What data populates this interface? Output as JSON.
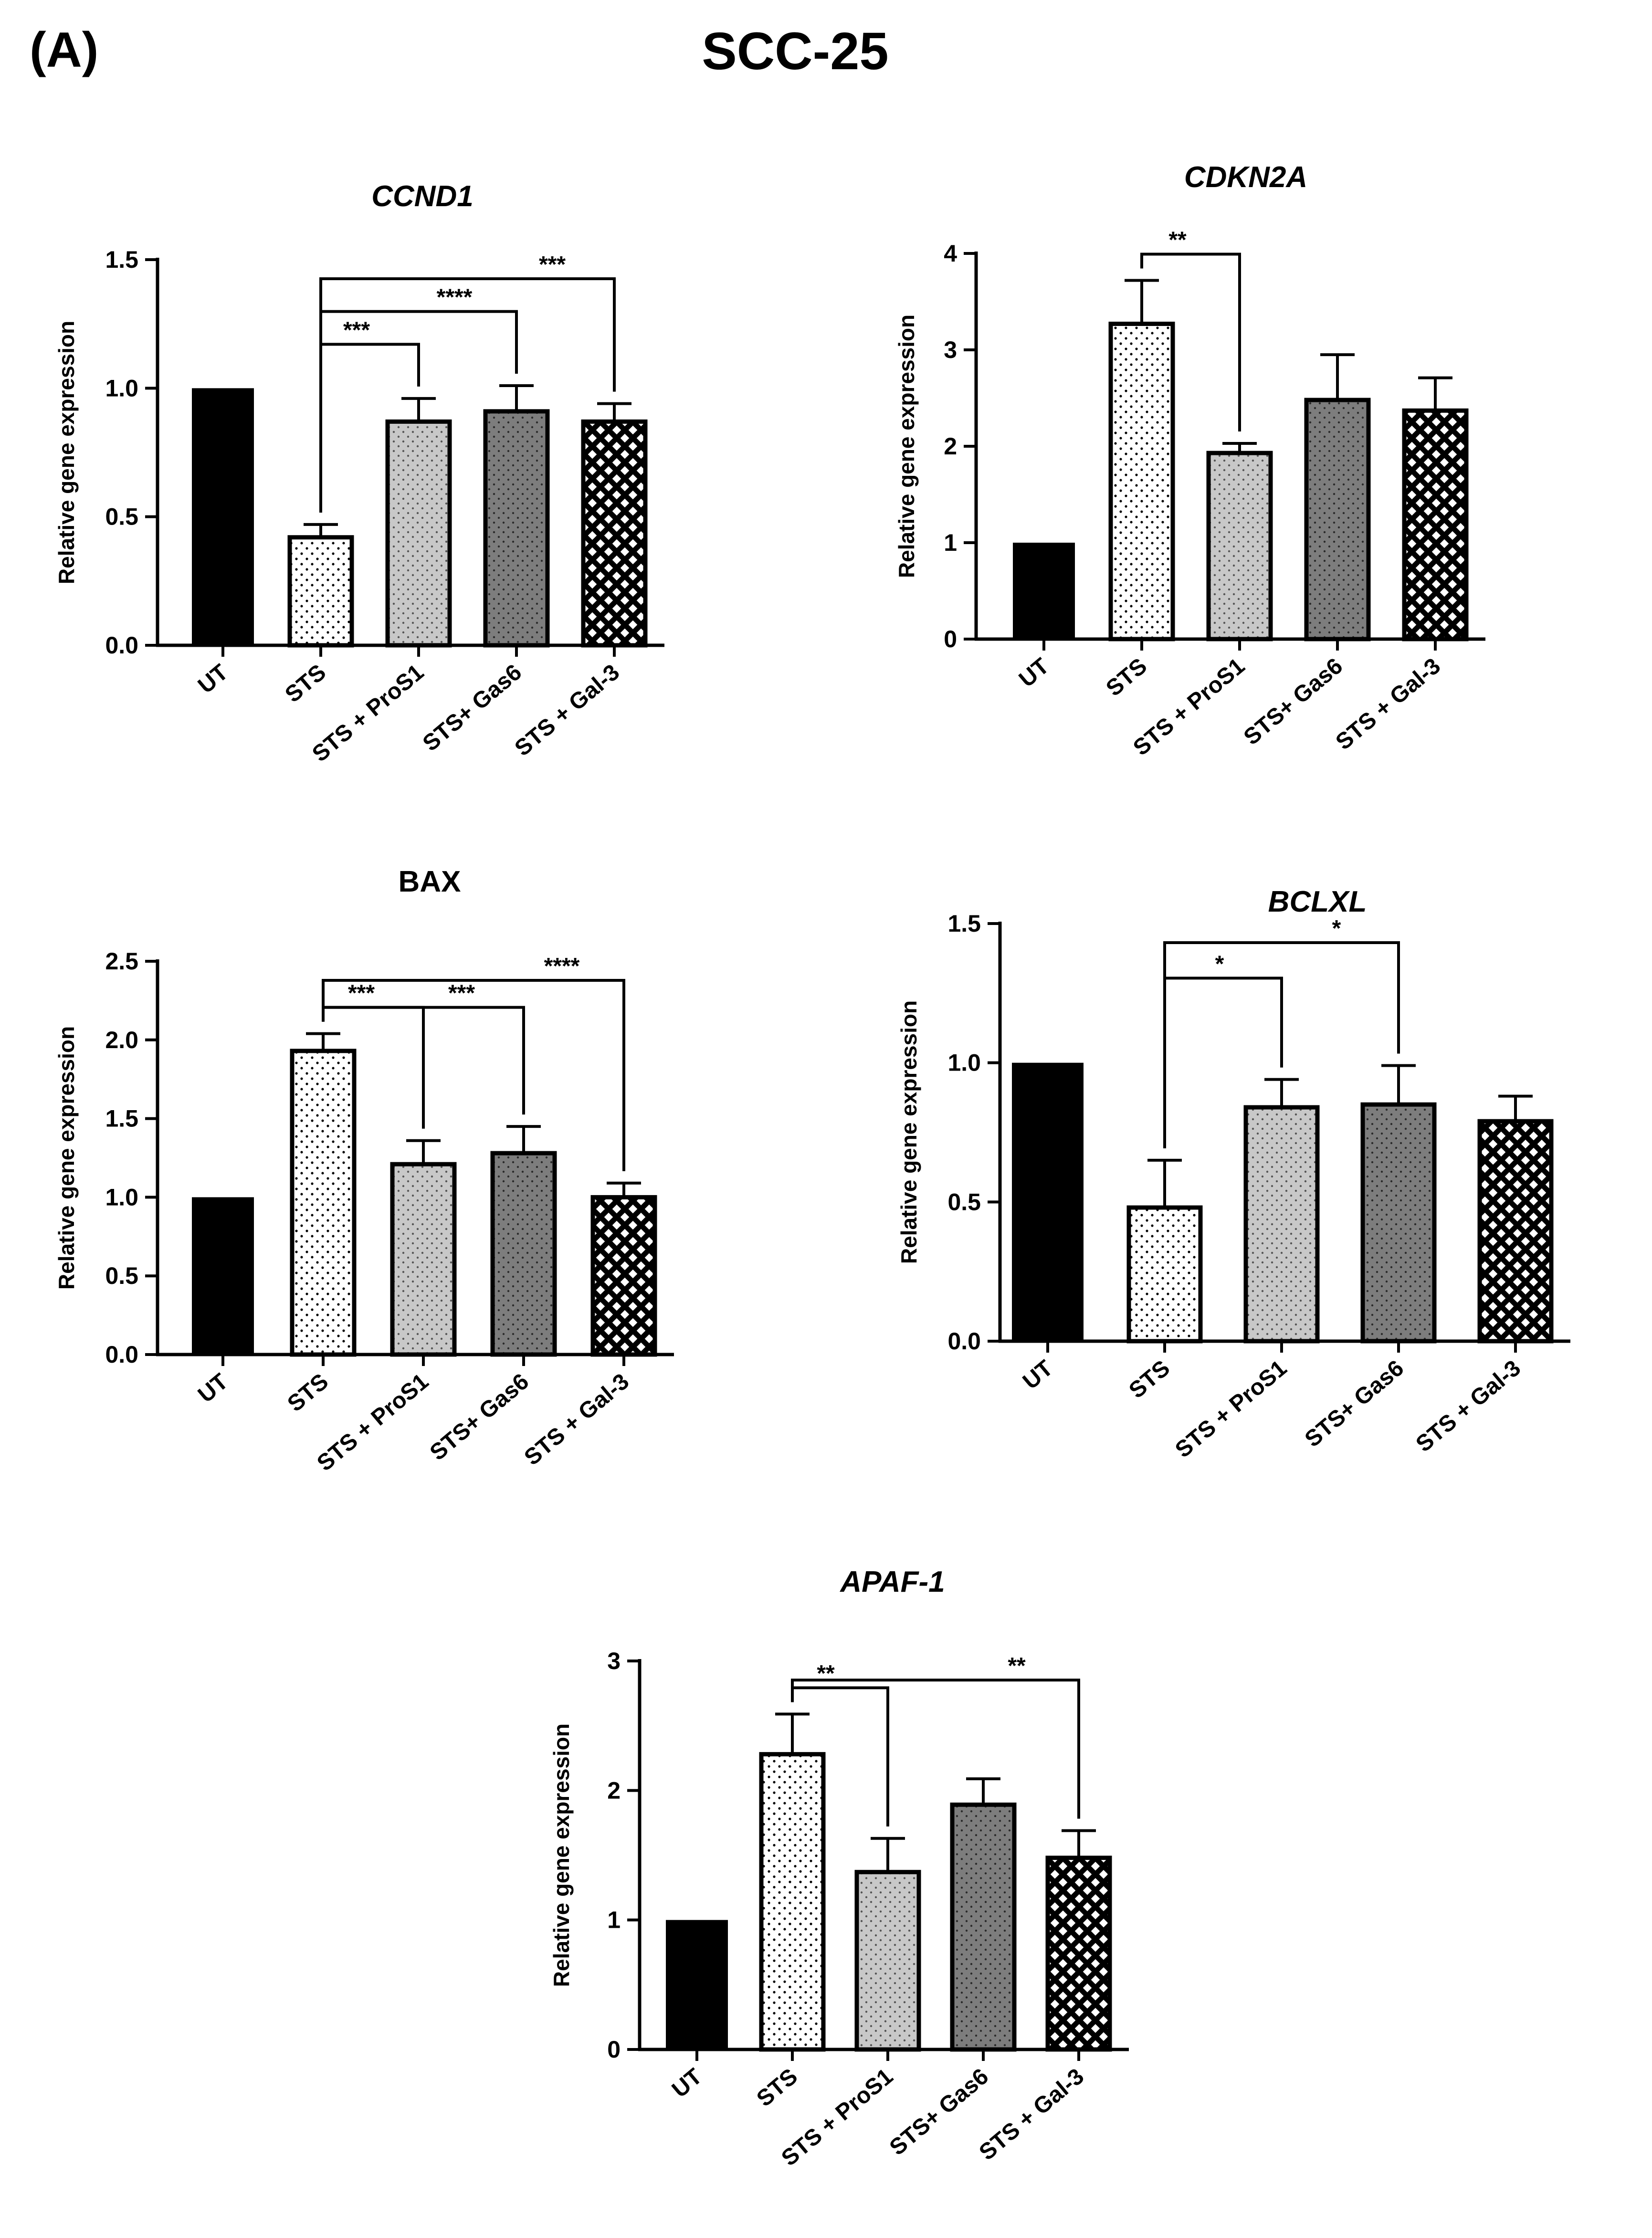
{
  "figure": {
    "panel_label": "(A)",
    "title": "SCC-25"
  },
  "chart_data": [
    {
      "type": "bar",
      "title": "CCND1",
      "title_italic": true,
      "xlabel": "",
      "ylabel": "Relative gene expression",
      "categories": [
        "UT",
        "STS",
        "STS + ProS1",
        "STS+ Gas6",
        "STS + Gal-3"
      ],
      "values": [
        1.0,
        0.42,
        0.87,
        0.91,
        0.87
      ],
      "errors": [
        0,
        0.05,
        0.09,
        0.1,
        0.07
      ],
      "ylim": [
        0,
        1.5
      ],
      "yticks": [
        0.0,
        0.5,
        1.0,
        1.5
      ],
      "ytick_labels": [
        "0.0",
        "0.5",
        "1.0",
        "1.5"
      ],
      "significance": [
        {
          "from": 1,
          "to": 2,
          "label": "***"
        },
        {
          "from": 1,
          "to": 3,
          "label": "****"
        },
        {
          "from": 1,
          "to": 4,
          "label": "***"
        }
      ]
    },
    {
      "type": "bar",
      "title": "CDKN2A",
      "title_italic": true,
      "xlabel": "",
      "ylabel": "Relative gene expression",
      "categories": [
        "UT",
        "STS",
        "STS + ProS1",
        "STS+ Gas6",
        "STS + Gal-3"
      ],
      "values": [
        1.0,
        3.27,
        1.93,
        2.48,
        2.37
      ],
      "errors": [
        0,
        0.45,
        0.1,
        0.47,
        0.34
      ],
      "ylim": [
        0,
        4
      ],
      "yticks": [
        0,
        1,
        2,
        3,
        4
      ],
      "ytick_labels": [
        "0",
        "1",
        "2",
        "3",
        "4"
      ],
      "significance": [
        {
          "from": 1,
          "to": 2,
          "label": "**"
        }
      ]
    },
    {
      "type": "bar",
      "title": "BAX",
      "title_italic": false,
      "xlabel": "",
      "ylabel": "Relative gene expression",
      "categories": [
        "UT",
        "STS",
        "STS + ProS1",
        "STS+ Gas6",
        "STS + Gal-3"
      ],
      "values": [
        1.0,
        1.93,
        1.21,
        1.28,
        1.0
      ],
      "errors": [
        0,
        0.11,
        0.15,
        0.17,
        0.09
      ],
      "ylim": [
        0,
        2.5
      ],
      "yticks": [
        0.0,
        0.5,
        1.0,
        1.5,
        2.0,
        2.5
      ],
      "ytick_labels": [
        "0.0",
        "0.5",
        "1.0",
        "1.5",
        "2.0",
        "2.5"
      ],
      "significance": [
        {
          "from": 1,
          "to": 2,
          "label": "***"
        },
        {
          "from": 1,
          "to": 3,
          "label": "***"
        },
        {
          "from": 1,
          "to": 4,
          "label": "****"
        }
      ]
    },
    {
      "type": "bar",
      "title": "BCLXL",
      "title_italic": true,
      "xlabel": "",
      "ylabel": "Relative gene expression",
      "categories": [
        "UT",
        "STS",
        "STS + ProS1",
        "STS+ Gas6",
        "STS + Gal-3"
      ],
      "values": [
        1.0,
        0.48,
        0.84,
        0.85,
        0.79
      ],
      "errors": [
        0,
        0.17,
        0.1,
        0.14,
        0.09
      ],
      "ylim": [
        0,
        1.5
      ],
      "yticks": [
        0.0,
        0.5,
        1.0,
        1.5
      ],
      "ytick_labels": [
        "0.0",
        "0.5",
        "1.0",
        "1.5"
      ],
      "significance": [
        {
          "from": 1,
          "to": 2,
          "label": "*"
        },
        {
          "from": 1,
          "to": 3,
          "label": "*"
        }
      ]
    },
    {
      "type": "bar",
      "title": "APAF-1",
      "title_italic": true,
      "xlabel": "",
      "ylabel": "Relative gene expression",
      "categories": [
        "UT",
        "STS",
        "STS + ProS1",
        "STS+ Gas6",
        "STS + Gal-3"
      ],
      "values": [
        1.0,
        2.28,
        1.37,
        1.89,
        1.48
      ],
      "errors": [
        0,
        0.31,
        0.26,
        0.2,
        0.21
      ],
      "ylim": [
        0,
        3
      ],
      "yticks": [
        0,
        1,
        2,
        3
      ],
      "ytick_labels": [
        "0",
        "1",
        "2",
        "3"
      ],
      "significance": [
        {
          "from": 1,
          "to": 2,
          "label": "**"
        },
        {
          "from": 1,
          "to": 4,
          "label": "**"
        }
      ]
    }
  ],
  "colors": {
    "ink": "#000000",
    "untreated_fill": "#000000",
    "sts_fill": "#ffffff",
    "pros1_fill": "#c8c8c8",
    "gas6_fill": "#7d7d7d",
    "gal3_fill": "#000000",
    "background": "#ffffff"
  }
}
